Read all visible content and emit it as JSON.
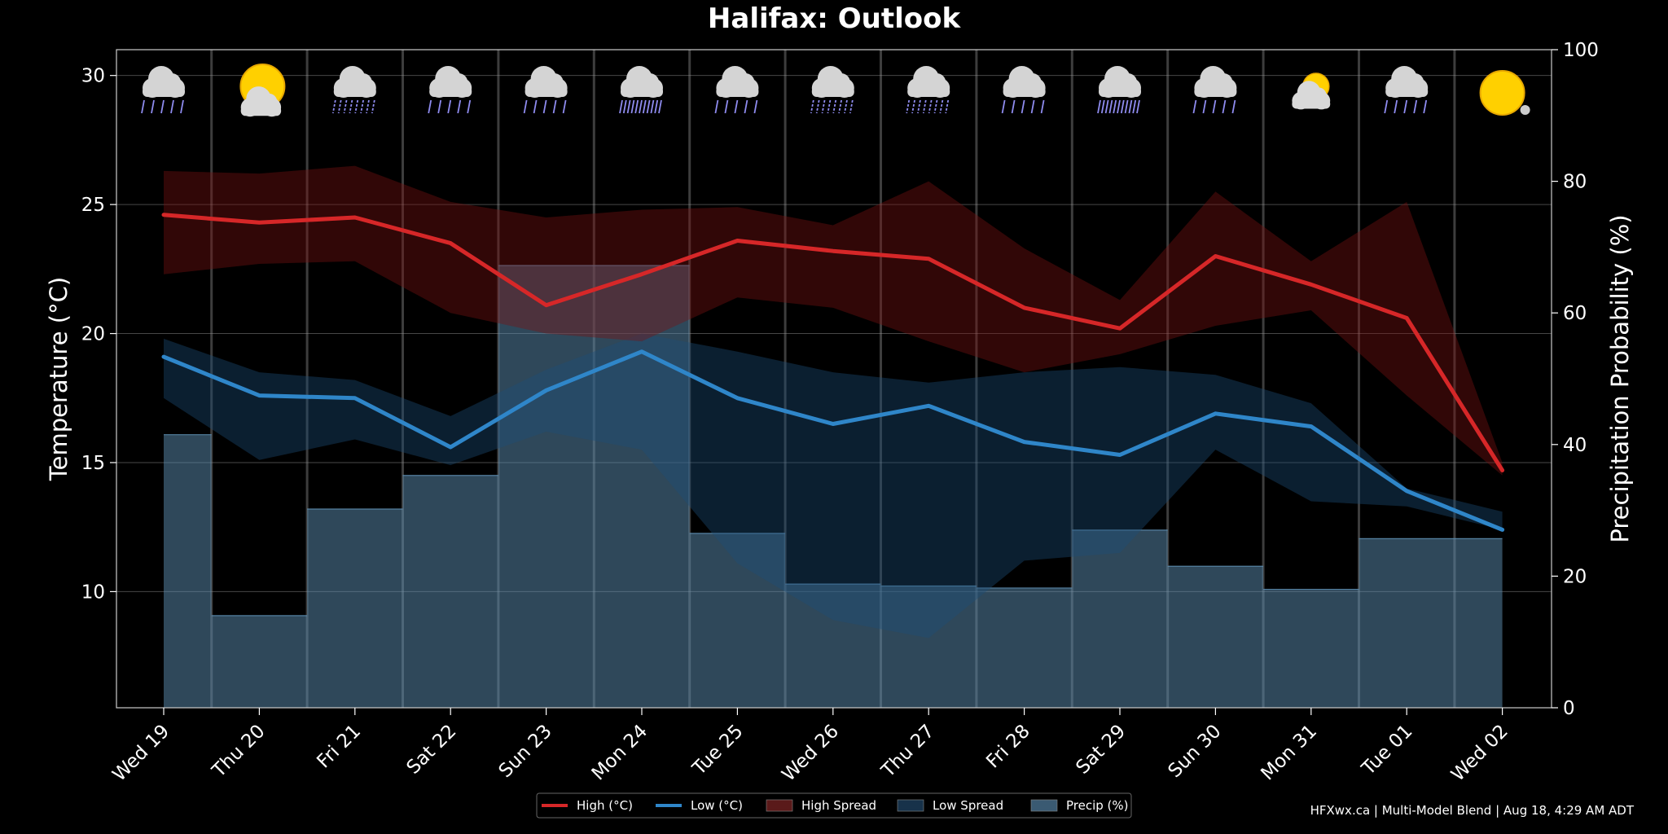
{
  "chart_data": {
    "type": "line",
    "title": "Halifax: Outlook",
    "ylabel": "Temperature (°C)",
    "y2label": "Precipitation Probability (%)",
    "ylim": [
      5.5,
      31
    ],
    "y2lim": [
      0,
      100
    ],
    "yticks": [
      10,
      15,
      20,
      25,
      30
    ],
    "y2ticks": [
      0,
      20,
      40,
      60,
      80,
      100
    ],
    "categories": [
      "Wed 19",
      "Thu 20",
      "Fri 21",
      "Sat 22",
      "Sun 23",
      "Mon 24",
      "Tue 25",
      "Wed 26",
      "Thu 27",
      "Fri 28",
      "Sat 29",
      "Sun 30",
      "Mon 31",
      "Tue 01",
      "Wed 02"
    ],
    "high": [
      24.6,
      24.3,
      24.5,
      23.5,
      21.1,
      22.3,
      23.6,
      23.2,
      22.9,
      21.0,
      20.2,
      23.0,
      21.9,
      20.6,
      14.7
    ],
    "high_spread_upper": [
      26.3,
      26.2,
      26.5,
      25.1,
      24.5,
      24.8,
      24.9,
      24.2,
      25.9,
      23.3,
      21.3,
      25.5,
      22.8,
      25.1,
      15.0
    ],
    "high_spread_lower": [
      22.3,
      22.7,
      22.8,
      20.8,
      20.0,
      19.7,
      21.4,
      21.0,
      19.7,
      18.5,
      19.2,
      20.3,
      20.9,
      17.6,
      14.5
    ],
    "low": [
      19.1,
      17.6,
      17.5,
      15.6,
      17.8,
      19.3,
      17.5,
      16.5,
      17.2,
      15.8,
      15.3,
      16.9,
      16.4,
      13.9,
      12.4
    ],
    "low_spread_upper": [
      19.8,
      18.5,
      18.2,
      16.8,
      18.6,
      20.0,
      19.3,
      18.5,
      18.1,
      18.5,
      18.7,
      18.4,
      17.3,
      14.0,
      13.1
    ],
    "low_spread_lower": [
      17.5,
      15.1,
      15.9,
      14.9,
      16.2,
      15.5,
      11.1,
      8.9,
      8.2,
      11.2,
      11.5,
      15.5,
      13.5,
      13.3,
      12.4
    ],
    "precip": [
      41.5,
      14,
      30.2,
      35.3,
      67.2,
      67.2,
      26.5,
      18.8,
      18.5,
      18.2,
      27,
      21.5,
      18,
      25.7,
      25.7
    ],
    "precip_steps_x": [
      0,
      0.5,
      1.5,
      2.5,
      3.5,
      4.5,
      5.5,
      6.5,
      7.5,
      8.5,
      9.5,
      10.5,
      11.5,
      12.5,
      13.5,
      14
    ],
    "daily_icons": [
      "rain",
      "partly-cloudy",
      "drizzle",
      "rain",
      "rain",
      "heavy-rain",
      "rain",
      "drizzle",
      "drizzle",
      "rain",
      "heavy-rain",
      "rain",
      "mostly-cloudy",
      "rain",
      "sunny"
    ],
    "legend": [
      {
        "label": "High (°C)",
        "kind": "line",
        "color": "#d62728"
      },
      {
        "label": "Low (°C)",
        "kind": "line",
        "color": "#2f86c9"
      },
      {
        "label": "High Spread",
        "kind": "patch",
        "color": "#5a1a1a"
      },
      {
        "label": "Low Spread",
        "kind": "patch",
        "color": "#17324a"
      },
      {
        "label": "Precip (%)",
        "kind": "patch",
        "color": "#3a5a72"
      }
    ],
    "legend_position": "bottom-center",
    "grid": true,
    "colors": {
      "high": "#d62728",
      "low": "#2f86c9",
      "high_spread": "#7a1212",
      "low_spread": "#1c4e78",
      "precip": "#5e8fb3"
    }
  },
  "footer": "HFXwx.ca | Multi-Model Blend | Aug 18, 4:29 AM ADT"
}
